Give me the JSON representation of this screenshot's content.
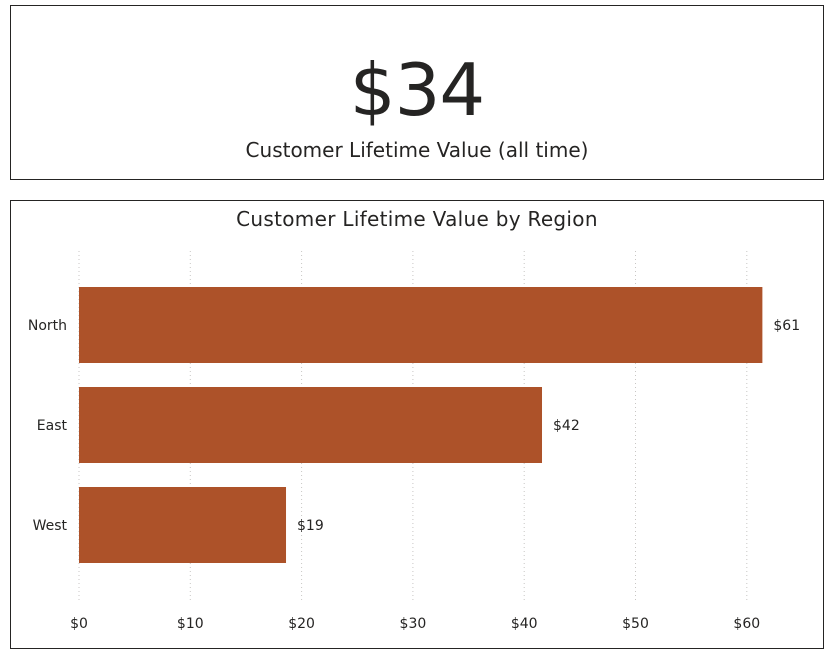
{
  "kpi": {
    "value": "$34",
    "label": "Customer Lifetime Value (all time)"
  },
  "chart_data": {
    "type": "bar",
    "orientation": "horizontal",
    "title": "Customer Lifetime Value by Region",
    "categories": [
      "North",
      "East",
      "West"
    ],
    "values": [
      61.4,
      41.6,
      18.6
    ],
    "data_labels": [
      "$61",
      "$42",
      "$19"
    ],
    "xlim": [
      0,
      60
    ],
    "x_ticks": [
      "$0",
      "$10",
      "$20",
      "$30",
      "$40",
      "$50",
      "$60"
    ],
    "grid": true,
    "bar_color": "#AD5229",
    "grid_color": "#C8C6C4",
    "text_color": "#252423"
  }
}
